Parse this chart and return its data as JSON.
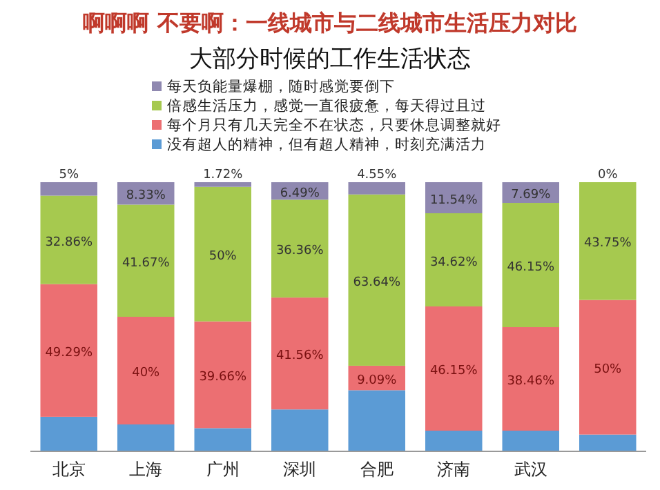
{
  "chart_data": {
    "type": "bar",
    "stacked": true,
    "title": "大部分时候的工作生活状态",
    "annotations": [
      "啊啊啊 不要啊：一线城市与二线城市生活压力对比"
    ],
    "categories": [
      "北京",
      "上海",
      "广州",
      "深圳",
      "合肥",
      "济南",
      "武汉",
      null
    ],
    "ylim": [
      0,
      100
    ],
    "tick_labels": "x",
    "legend": "top left",
    "series": [
      {
        "name": "没有超人的精神，但有超人精神，时刻充满活力",
        "color": "#5b9bd5",
        "values": [
          12.85,
          10,
          8.62,
          15.58,
          22.72,
          7.69,
          7.69,
          6.25
        ],
        "value_labels": [
          null,
          null,
          null,
          null,
          null,
          null,
          null,
          null
        ]
      },
      {
        "name": "每个月只有几天完全不在状态，只要休息调整就好",
        "color": "#ec6f72",
        "values": [
          49.29,
          40,
          39.66,
          41.56,
          9.09,
          46.15,
          38.46,
          50
        ],
        "value_labels": [
          "49.29%",
          "40%",
          "39.66%",
          "41.56%",
          "9.09%",
          "46.15%",
          "38.46%",
          "50%"
        ]
      },
      {
        "name": "倍感生活压力，感觉一直很疲惫，每天得过且过",
        "color": "#a6c94f",
        "values": [
          32.86,
          41.67,
          50,
          36.36,
          63.64,
          34.62,
          46.15,
          43.75
        ],
        "value_labels": [
          "32.86%",
          "41.67%",
          "50%",
          "36.36%",
          "63.64%",
          "34.62%",
          "46.15%",
          "43.75%"
        ]
      },
      {
        "name": "每天负能量爆棚，随时感觉要倒下",
        "color": "#8f88b0",
        "values": [
          5,
          8.33,
          1.72,
          6.49,
          4.55,
          11.54,
          7.69,
          0
        ],
        "value_labels": [
          "5%",
          "8.33%",
          "1.72%",
          "6.49%",
          "4.55%",
          "11.54%",
          "7.69%",
          "0%"
        ]
      }
    ]
  }
}
